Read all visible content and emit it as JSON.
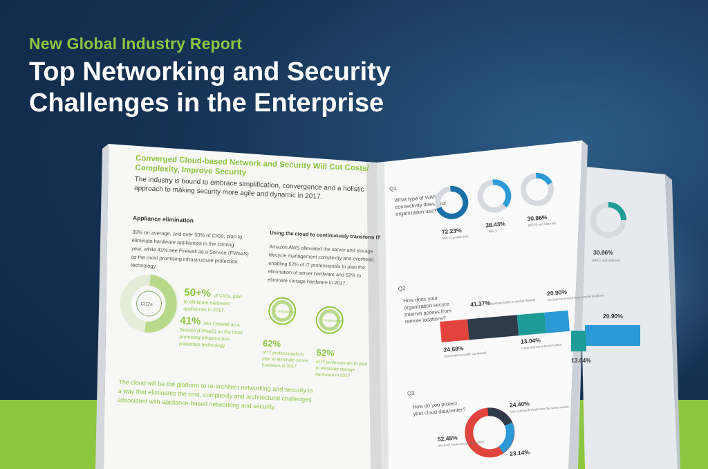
{
  "header": {
    "subtitle": "New Global Industry Report",
    "title_line1": "Top Networking and Security",
    "title_line2": "Challenges in the Enterprise"
  },
  "left_page": {
    "heading_line1": "Converged Cloud-based Network and Security Will Cut Costs/",
    "heading_line2": "Complexity, Improve Security",
    "intro_line1": "The industry is bound to embrace simplification, convergence and a holistic",
    "intro_line2": "approach to making security more agile and dynamic in 2017.",
    "col1_heading": "Appliance elimination",
    "col1_lines": [
      "39% on average, and over 50% of CIOs, plan to",
      "eliminate hardware appliances in the coming",
      "year, while 41% see Firewall as a Service (FWaaS)",
      "as the most promising infrastructure protection",
      "technology."
    ],
    "donut_label": "CIO's",
    "stat1_value": "50+%",
    "stat1_lines": [
      "of CIOs, plan",
      "to eliminate hardware",
      "appliances in 2017."
    ],
    "stat2_value": "41%",
    "stat2_lines": [
      "see Firewall as a",
      "Service (FWaaS) as the most",
      "promising infrastructure",
      "protection technology"
    ],
    "col2_heading": "Using the cloud to continuously transform IT",
    "col2_lines": [
      "Amazon AWS alleviated the server and storage",
      "lifecycle management complexity and overhead,",
      "enabling 62% of IT professionals to plan the",
      "elimination of server hardware and 52% to",
      "eliminate storage hardware in 2017."
    ],
    "icon1_label": "IT professionals",
    "icon2_label": "IT professionals",
    "stat3_value": "62%",
    "stat3_lines": [
      "of IT professionals to",
      "plan to eliminate server",
      "hardware in 2017"
    ],
    "stat4_value": "52%",
    "stat4_lines": [
      "of IT professionals to plan",
      "to eliminate storage",
      "hardware in 2017"
    ],
    "footer_lines": [
      "The cloud will be the platform to re-architect networking and security in",
      "a way that eliminates the cost, complexity and architectural challenges",
      "associated with appliance-based networking and security."
    ]
  },
  "right_page": {
    "q1_label": "Q1",
    "q1_lines": [
      "What type of WAN",
      "connectivity does your",
      "organization use?"
    ],
    "q1_stats": [
      {
        "value": "72.23%",
        "label": "MPLS (private line)"
      },
      {
        "value": "38.43%",
        "label": "MPLS"
      },
      {
        "value": "30.86%",
        "label": "(MPLS and Internet)"
      }
    ],
    "q2_label": "Q2",
    "q2_lines": [
      "How does your",
      "organization secure",
      "Internet access from",
      "remote locations?"
    ],
    "q2_stats": [
      {
        "value": "41.37%",
        "label": "Backhaul traffic to central firewall"
      },
      {
        "value": "20.90%",
        "label": "No internet access from remote locations"
      },
      {
        "value": "24.68%",
        "label": "Send internet traffic via firewall"
      },
      {
        "value": "13.04%",
        "label": "Local internet at branch office"
      }
    ],
    "q3_label": "Q3",
    "q3_lines": [
      "How do you protect",
      "your cloud datacenter?"
    ],
    "q3_stats": [
      {
        "value": "24.40%",
        "label": "Use a virtual firewall from the same vendor"
      },
      {
        "value": "52.45%",
        "label": "We don't have a cloud datacenter"
      },
      {
        "value": "23.14%",
        "label": ""
      }
    ]
  },
  "back_page": {
    "stat1": "30.86%",
    "stat1_label": "(MPLS and Internet)",
    "stat2": "20.90%",
    "stat3": "13.04%"
  },
  "colors": {
    "green": "#8dc63f",
    "teal": "#1d9c98",
    "blue": "#2b9ad6",
    "navy": "#2f3a4a",
    "red": "#e0443d"
  }
}
